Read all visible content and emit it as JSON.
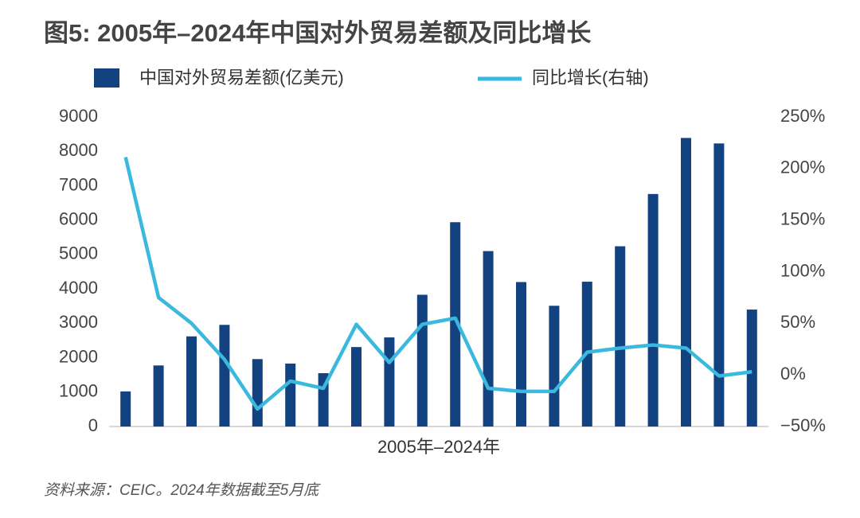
{
  "chart_data": {
    "type": "bar-line",
    "title": "图5: 2005年–2024年中国对外贸易差额及同比增长",
    "x_label": "2005年–2024年",
    "source": "资料来源：CEIC。2024年数据截至5月底",
    "categories": [
      null,
      null,
      null,
      null,
      null,
      null,
      null,
      null,
      null,
      null,
      null,
      null,
      null,
      null,
      null,
      null,
      null,
      null,
      null,
      null
    ],
    "series": [
      {
        "name": "中国对外贸易差额(亿美元)",
        "type": "bar",
        "color": "#12427f",
        "values": [
          1020,
          1775,
          2620,
          2955,
          1960,
          1830,
          1550,
          2310,
          2590,
          3830,
          5940,
          5100,
          4200,
          3510,
          4210,
          5240,
          6760,
          8390,
          8230,
          3400
        ]
      },
      {
        "name": "同比增长(右轴)",
        "type": "line",
        "axis": "y2",
        "color": "#3bb8dd",
        "values": [
          211,
          75,
          50,
          15,
          -33,
          -6,
          -13,
          49,
          12,
          49,
          55,
          -13,
          -16,
          -16,
          22,
          26,
          29,
          26,
          -1,
          3
        ]
      }
    ],
    "ylim": [
      0,
      9000
    ],
    "yticks": [
      0,
      1000,
      2000,
      3000,
      4000,
      5000,
      6000,
      7000,
      8000,
      9000
    ],
    "y2lim": [
      -50,
      250
    ],
    "y2ticks": [
      {
        "value": -50,
        "label": "−50%"
      },
      {
        "value": 0,
        "label": "0%"
      },
      {
        "value": 50,
        "label": "50%"
      },
      {
        "value": 100,
        "label": "100%"
      },
      {
        "value": 150,
        "label": "150%"
      },
      {
        "value": 200,
        "label": "200%"
      },
      {
        "value": 250,
        "label": "250%"
      }
    ]
  }
}
